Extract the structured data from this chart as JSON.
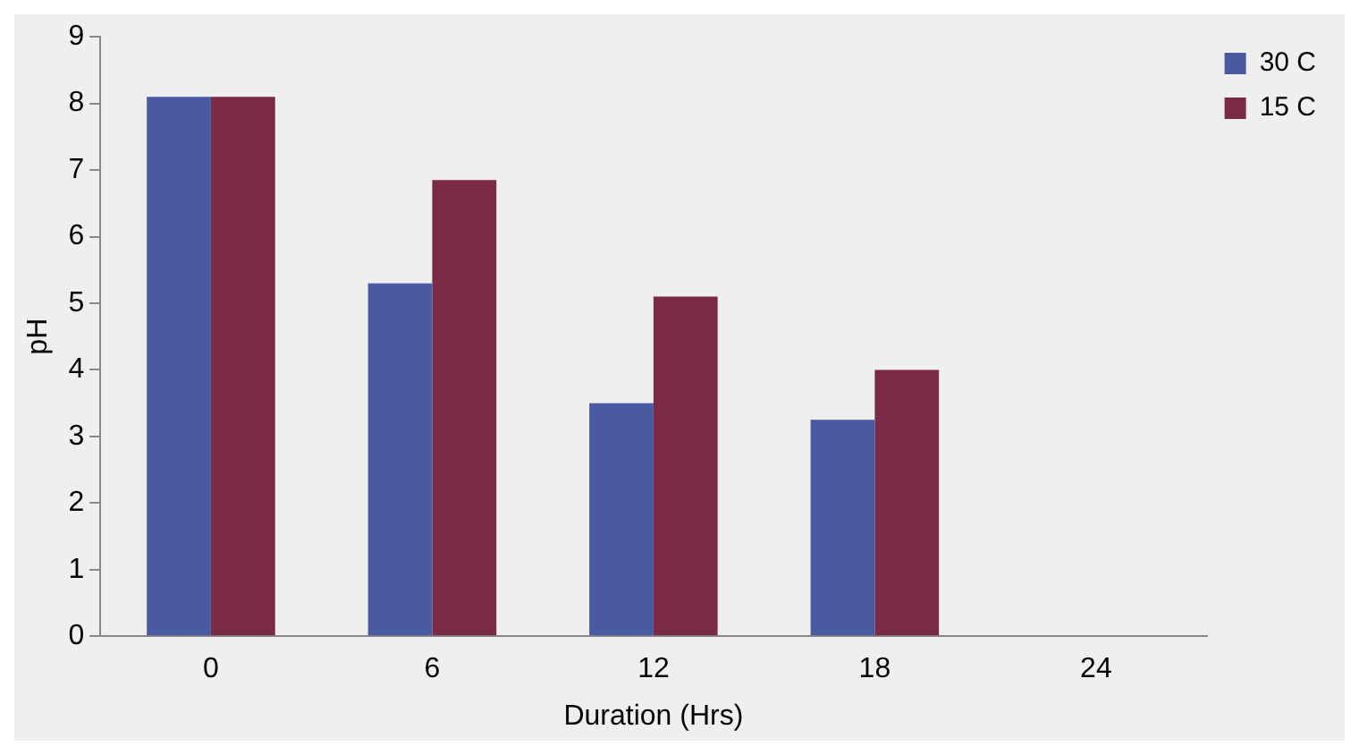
{
  "chart_data": {
    "type": "bar",
    "xlabel": "Duration (Hrs)",
    "ylabel": "pH",
    "categories": [
      "0",
      "6",
      "12",
      "18",
      "24"
    ],
    "series": [
      {
        "name": "30 C",
        "color": "#4a5aa0",
        "values": [
          8.1,
          5.3,
          3.5,
          3.25,
          null
        ]
      },
      {
        "name": "15 C",
        "color": "#7a2a46",
        "values": [
          8.1,
          6.85,
          5.1,
          4.0,
          null
        ]
      }
    ],
    "ylim": [
      0,
      9
    ],
    "yticks": [
      0,
      1,
      2,
      3,
      4,
      5,
      6,
      7,
      8,
      9
    ],
    "grid": false,
    "legend": "top right"
  }
}
